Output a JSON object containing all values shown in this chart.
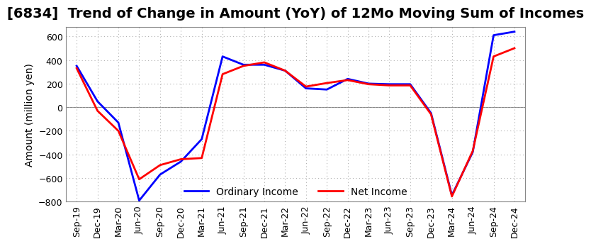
{
  "title": "[6834]  Trend of Change in Amount (YoY) of 12Mo Moving Sum of Incomes",
  "ylabel": "Amount (million yen)",
  "x_labels": [
    "Sep-19",
    "Dec-19",
    "Mar-20",
    "Jun-20",
    "Sep-20",
    "Dec-20",
    "Mar-21",
    "Jun-21",
    "Sep-21",
    "Dec-21",
    "Mar-22",
    "Jun-22",
    "Sep-22",
    "Dec-22",
    "Mar-23",
    "Jun-23",
    "Sep-23",
    "Dec-23",
    "Mar-24",
    "Jun-24",
    "Sep-24",
    "Dec-24"
  ],
  "ordinary_income": [
    350,
    50,
    -130,
    -790,
    -570,
    -460,
    -270,
    430,
    360,
    360,
    310,
    160,
    150,
    240,
    200,
    195,
    195,
    -50,
    -745,
    -380,
    610,
    640
  ],
  "net_income": [
    330,
    -30,
    -200,
    -610,
    -490,
    -440,
    -430,
    280,
    350,
    380,
    310,
    175,
    205,
    230,
    195,
    185,
    185,
    -60,
    -755,
    -370,
    430,
    500
  ],
  "ordinary_color": "#0000ff",
  "net_color": "#ff0000",
  "ylim": [
    -800,
    680
  ],
  "yticks": [
    -800,
    -600,
    -400,
    -200,
    0,
    200,
    400,
    600
  ],
  "grid_color": "#b0b0b0",
  "background_color": "#ffffff",
  "title_fontsize": 14,
  "axis_fontsize": 10,
  "tick_fontsize": 9,
  "linewidth": 2.0
}
